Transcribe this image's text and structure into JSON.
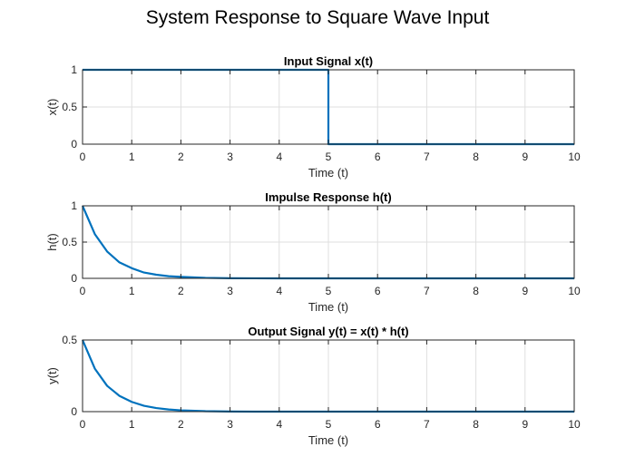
{
  "figure": {
    "title": "System Response to Square Wave Input"
  },
  "colors": {
    "line": "#0072BD",
    "axis": "#262626",
    "grid": "#dfdfdf"
  },
  "chart_data": [
    {
      "type": "line",
      "title": "Input Signal x(t)",
      "xlabel": "Time (t)",
      "ylabel": "x(t)",
      "xlim": [
        0,
        10
      ],
      "ylim": [
        0,
        1
      ],
      "xticks": [
        0,
        1,
        2,
        3,
        4,
        5,
        6,
        7,
        8,
        9,
        10
      ],
      "yticks": [
        0,
        0.5,
        1
      ],
      "grid": true,
      "series": [
        {
          "x": [
            0,
            5,
            5,
            10
          ],
          "y": [
            1,
            1,
            0,
            0
          ]
        }
      ]
    },
    {
      "type": "line",
      "title": "Impulse Response h(t)",
      "xlabel": "Time (t)",
      "ylabel": "h(t)",
      "xlim": [
        0,
        10
      ],
      "ylim": [
        0,
        1
      ],
      "xticks": [
        0,
        1,
        2,
        3,
        4,
        5,
        6,
        7,
        8,
        9,
        10
      ],
      "yticks": [
        0,
        0.5,
        1
      ],
      "grid": true,
      "series": [
        {
          "x": [
            0,
            0.25,
            0.5,
            0.75,
            1,
            1.25,
            1.5,
            1.75,
            2,
            2.5,
            3,
            3.5,
            4,
            5,
            6,
            7,
            8,
            9,
            10
          ],
          "y": [
            1,
            0.61,
            0.37,
            0.22,
            0.14,
            0.08,
            0.05,
            0.03,
            0.02,
            0.007,
            0.002,
            0.001,
            0,
            0,
            0,
            0,
            0,
            0,
            0
          ]
        }
      ]
    },
    {
      "type": "line",
      "title": "Output Signal y(t) = x(t) * h(t)",
      "xlabel": "Time (t)",
      "ylabel": "y(t)",
      "xlim": [
        0,
        10
      ],
      "ylim": [
        0,
        0.5
      ],
      "xticks": [
        0,
        1,
        2,
        3,
        4,
        5,
        6,
        7,
        8,
        9,
        10
      ],
      "yticks": [
        0,
        0.5
      ],
      "grid": true,
      "series": [
        {
          "x": [
            0,
            0.25,
            0.5,
            0.75,
            1,
            1.25,
            1.5,
            1.75,
            2,
            2.5,
            3,
            3.5,
            4,
            5,
            6,
            7,
            8,
            9,
            10
          ],
          "y": [
            0.5,
            0.3,
            0.18,
            0.11,
            0.068,
            0.041,
            0.025,
            0.015,
            0.009,
            0.003,
            0.001,
            0,
            0,
            0,
            0,
            0,
            0,
            0,
            0
          ]
        }
      ]
    }
  ]
}
